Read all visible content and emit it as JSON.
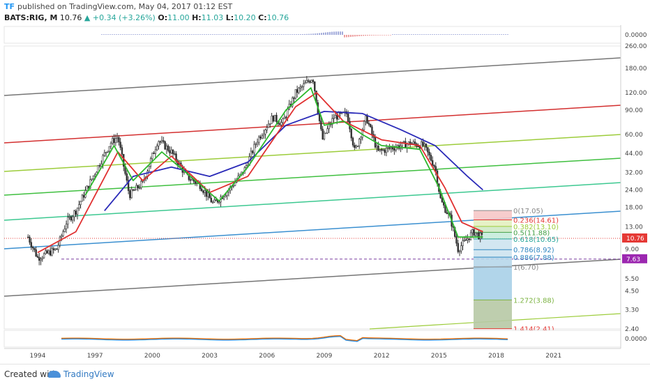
{
  "header": {
    "logo": "TF",
    "published": "published on TradingView.com, May 04, 2017 01:12 EST",
    "symbol": "BATS:RIG, M",
    "last": "10.76",
    "change": "+0.34 (+3.26%)",
    "o_label": "O:",
    "o_value": "11.00",
    "h_label": "H:",
    "h_value": "11.03",
    "l_label": "L:",
    "l_value": "10.20",
    "c_label": "C:",
    "c_value": "10.76"
  },
  "footer": {
    "created_with": "Created with",
    "brand": "TradingView"
  },
  "colors": {
    "candle": "#333333",
    "ema_fast": "#2db82d",
    "ema_mid": "#e03030",
    "ema_slow": "#2a2ab8",
    "grey_channel": "#757575",
    "red_line": "#d32f2f",
    "lime_line": "#9ccc3a",
    "green_line": "#3fbf3f",
    "teal_line": "#3cc890",
    "blue_line": "#3a8fd0",
    "price_badge": "#e53935",
    "purple_badge": "#9c27b0"
  },
  "chart_data": {
    "type": "candlestick",
    "scale": "log",
    "timeframe": "monthly",
    "price_ticks": [
      "260.00",
      "180.00",
      "120.00",
      "90.00",
      "60.00",
      "44.00",
      "32.00",
      "24.00",
      "18.00",
      "13.00",
      "9.00",
      "7.63",
      "5.50",
      "4.50",
      "3.30",
      "2.40"
    ],
    "year_ticks": [
      "1994",
      "1997",
      "2000",
      "2003",
      "2006",
      "2009",
      "2012",
      "2015",
      "2018",
      "2021"
    ],
    "last_price_badge": "10.76",
    "dashed_level_badge": "7.63",
    "dashed_level": 7.63,
    "oscillator_top_axis": "0.0000",
    "oscillator_bottom_axis": "0.0000",
    "fib_levels": [
      {
        "label": "0(17.05)",
        "value": 17.05,
        "color": "#888888"
      },
      {
        "label": "0.236(14.61)",
        "value": 14.61,
        "color": "#e53935"
      },
      {
        "label": "0.382(13.10)",
        "value": 13.1,
        "color": "#9ccc3a"
      },
      {
        "label": "0.5(11.88)",
        "value": 11.88,
        "color": "#43a047"
      },
      {
        "label": "0.618(10.65)",
        "value": 10.65,
        "color": "#26a69a"
      },
      {
        "label": "0.786(8.92)",
        "value": 8.92,
        "color": "#2e86c1"
      },
      {
        "label": "0.886(7.88)",
        "value": 7.88,
        "color": "#2e86c1"
      },
      {
        "label": "1(6.70)",
        "value": 6.7,
        "color": "#888888"
      },
      {
        "label": "1.272(3.88)",
        "value": 3.88,
        "color": "#7cb342"
      },
      {
        "label": "1.414(2.41)",
        "value": 2.41,
        "color": "#e53935"
      }
    ],
    "price_path": [
      [
        1993.5,
        11
      ],
      [
        1994.0,
        7.8
      ],
      [
        1995.0,
        9
      ],
      [
        1995.5,
        14
      ],
      [
        1996.0,
        17
      ],
      [
        1997.0,
        32
      ],
      [
        1997.8,
        52
      ],
      [
        1998.2,
        58
      ],
      [
        1998.8,
        22
      ],
      [
        1999.5,
        27
      ],
      [
        2000.3,
        55
      ],
      [
        2001.0,
        45
      ],
      [
        2001.8,
        30
      ],
      [
        2002.5,
        26
      ],
      [
        2003.2,
        19
      ],
      [
        2004.0,
        24
      ],
      [
        2004.8,
        33
      ],
      [
        2005.5,
        55
      ],
      [
        2006.3,
        80
      ],
      [
        2006.8,
        72
      ],
      [
        2007.5,
        120
      ],
      [
        2008.4,
        155
      ],
      [
        2008.9,
        55
      ],
      [
        2009.5,
        80
      ],
      [
        2010.2,
        85
      ],
      [
        2010.6,
        45
      ],
      [
        2011.2,
        80
      ],
      [
        2011.8,
        45
      ],
      [
        2012.5,
        48
      ],
      [
        2013.5,
        52
      ],
      [
        2014.2,
        50
      ],
      [
        2014.8,
        35
      ],
      [
        2015.1,
        20
      ],
      [
        2015.6,
        15
      ],
      [
        2016.0,
        9
      ],
      [
        2016.3,
        10
      ],
      [
        2016.8,
        12
      ],
      [
        2017.3,
        10.8
      ]
    ],
    "ema_fast_path": [
      [
        1996.5,
        22
      ],
      [
        1998.0,
        50
      ],
      [
        1999.0,
        28
      ],
      [
        2000.5,
        45
      ],
      [
        2002.0,
        30
      ],
      [
        2003.5,
        20
      ],
      [
        2005.0,
        35
      ],
      [
        2007.0,
        90
      ],
      [
        2008.3,
        130
      ],
      [
        2009.0,
        70
      ],
      [
        2010.0,
        75
      ],
      [
        2011.0,
        60
      ],
      [
        2012.0,
        50
      ],
      [
        2014.0,
        47
      ],
      [
        2015.0,
        25
      ],
      [
        2016.0,
        11
      ],
      [
        2017.3,
        11
      ]
    ],
    "ema_mid_path": [
      [
        1994.0,
        8.5
      ],
      [
        1996.0,
        12
      ],
      [
        1998.2,
        45
      ],
      [
        1999.5,
        28
      ],
      [
        2001.0,
        42
      ],
      [
        2003.0,
        23
      ],
      [
        2005.0,
        30
      ],
      [
        2007.5,
        95
      ],
      [
        2008.6,
        120
      ],
      [
        2010.0,
        75
      ],
      [
        2012.0,
        55
      ],
      [
        2014.0,
        50
      ],
      [
        2015.3,
        25
      ],
      [
        2016.2,
        14
      ],
      [
        2017.3,
        12
      ]
    ],
    "ema_slow_path": [
      [
        1997.5,
        17
      ],
      [
        1999.0,
        30
      ],
      [
        2001.0,
        35
      ],
      [
        2003.0,
        30
      ],
      [
        2005.0,
        38
      ],
      [
        2007.0,
        70
      ],
      [
        2009.0,
        88
      ],
      [
        2011.0,
        85
      ],
      [
        2013.0,
        65
      ],
      [
        2014.8,
        50
      ],
      [
        2016.5,
        30
      ],
      [
        2017.3,
        24
      ]
    ]
  }
}
